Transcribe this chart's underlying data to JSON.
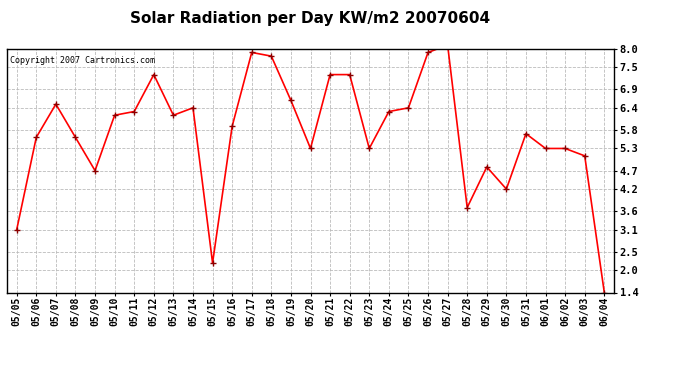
{
  "title": "Solar Radiation per Day KW/m2 20070604",
  "copyright": "Copyright 2007 Cartronics.com",
  "dates": [
    "05/05",
    "05/06",
    "05/07",
    "05/08",
    "05/09",
    "05/10",
    "05/11",
    "05/12",
    "05/13",
    "05/14",
    "05/15",
    "05/16",
    "05/17",
    "05/18",
    "05/19",
    "05/20",
    "05/21",
    "05/22",
    "05/23",
    "05/24",
    "05/25",
    "05/26",
    "05/27",
    "05/28",
    "05/29",
    "05/30",
    "05/31",
    "06/01",
    "06/02",
    "06/03",
    "06/04"
  ],
  "values": [
    3.1,
    5.6,
    6.5,
    5.6,
    4.7,
    6.2,
    6.3,
    7.3,
    6.2,
    6.4,
    2.2,
    5.9,
    7.9,
    7.8,
    6.6,
    5.3,
    7.3,
    7.3,
    5.3,
    6.3,
    6.4,
    7.9,
    8.1,
    3.7,
    4.8,
    4.2,
    5.7,
    5.3,
    5.3,
    5.1,
    1.4
  ],
  "yticks": [
    1.4,
    2.0,
    2.5,
    3.1,
    3.6,
    4.2,
    4.7,
    5.3,
    5.8,
    6.4,
    6.9,
    7.5,
    8.0
  ],
  "line_color": "red",
  "marker": "+",
  "marker_color": "darkred",
  "bg_color": "white",
  "grid_color": "#bbbbbb",
  "title_fontsize": 11,
  "copyright_fontsize": 6,
  "tick_fontsize": 7,
  "ytick_fontsize": 7.5
}
